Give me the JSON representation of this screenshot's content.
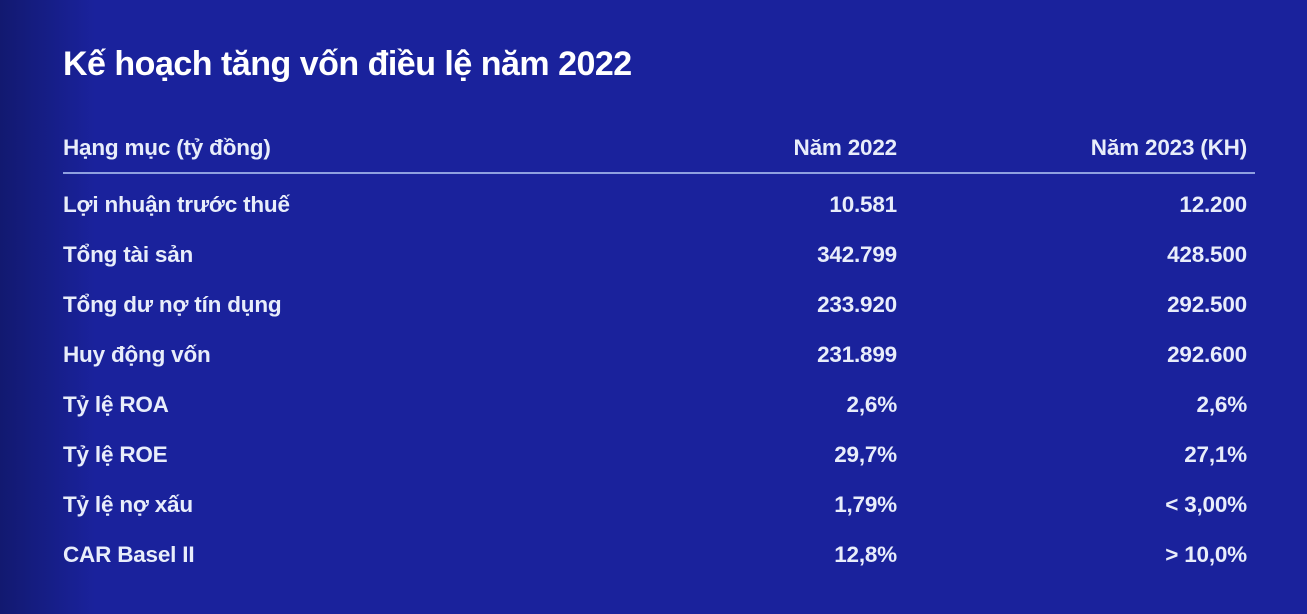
{
  "page": {
    "background_color": "#1a229c",
    "divider_color": "#8fa0e0",
    "title_color": "#ffffff",
    "text_color": "#e8edfa"
  },
  "title": "Kế hoạch tăng vốn điều lệ năm 2022",
  "table": {
    "columns": {
      "item": "Hạng mục (tỷ đồng)",
      "y2022": "Năm 2022",
      "y2023": "Năm 2023 (KH)"
    },
    "rows": [
      {
        "label": "Lợi nhuận trước thuế",
        "y2022": "10.581",
        "y2023": "12.200"
      },
      {
        "label": "Tổng tài sản",
        "y2022": "342.799",
        "y2023": "428.500"
      },
      {
        "label": "Tổng dư nợ tín dụng",
        "y2022": "233.920",
        "y2023": "292.500"
      },
      {
        "label": "Huy động vốn",
        "y2022": "231.899",
        "y2023": "292.600"
      },
      {
        "label": "Tỷ lệ ROA",
        "y2022": "2,6%",
        "y2023": "2,6%"
      },
      {
        "label": "Tỷ lệ ROE",
        "y2022": "29,7%",
        "y2023": "27,1%"
      },
      {
        "label": "Tỷ lệ nợ xấu",
        "y2022": "1,79%",
        "y2023": "< 3,00%"
      },
      {
        "label": "CAR Basel II",
        "y2022": "12,8%",
        "y2023": "> 10,0%"
      }
    ]
  },
  "chart_data": {
    "type": "table",
    "title": "Kế hoạch tăng vốn điều lệ năm 2022",
    "unit": "tỷ đồng",
    "columns": [
      "Hạng mục (tỷ đồng)",
      "Năm 2022",
      "Năm 2023 (KH)"
    ],
    "rows": [
      [
        "Lợi nhuận trước thuế",
        "10.581",
        "12.200"
      ],
      [
        "Tổng tài sản",
        "342.799",
        "428.500"
      ],
      [
        "Tổng dư nợ tín dụng",
        "233.920",
        "292.500"
      ],
      [
        "Huy động vốn",
        "231.899",
        "292.600"
      ],
      [
        "Tỷ lệ ROA",
        "2,6%",
        "2,6%"
      ],
      [
        "Tỷ lệ ROE",
        "29,7%",
        "27,1%"
      ],
      [
        "Tỷ lệ nợ xấu",
        "1,79%",
        "< 3,00%"
      ],
      [
        "CAR Basel II",
        "12,8%",
        "> 10,0%"
      ]
    ]
  }
}
